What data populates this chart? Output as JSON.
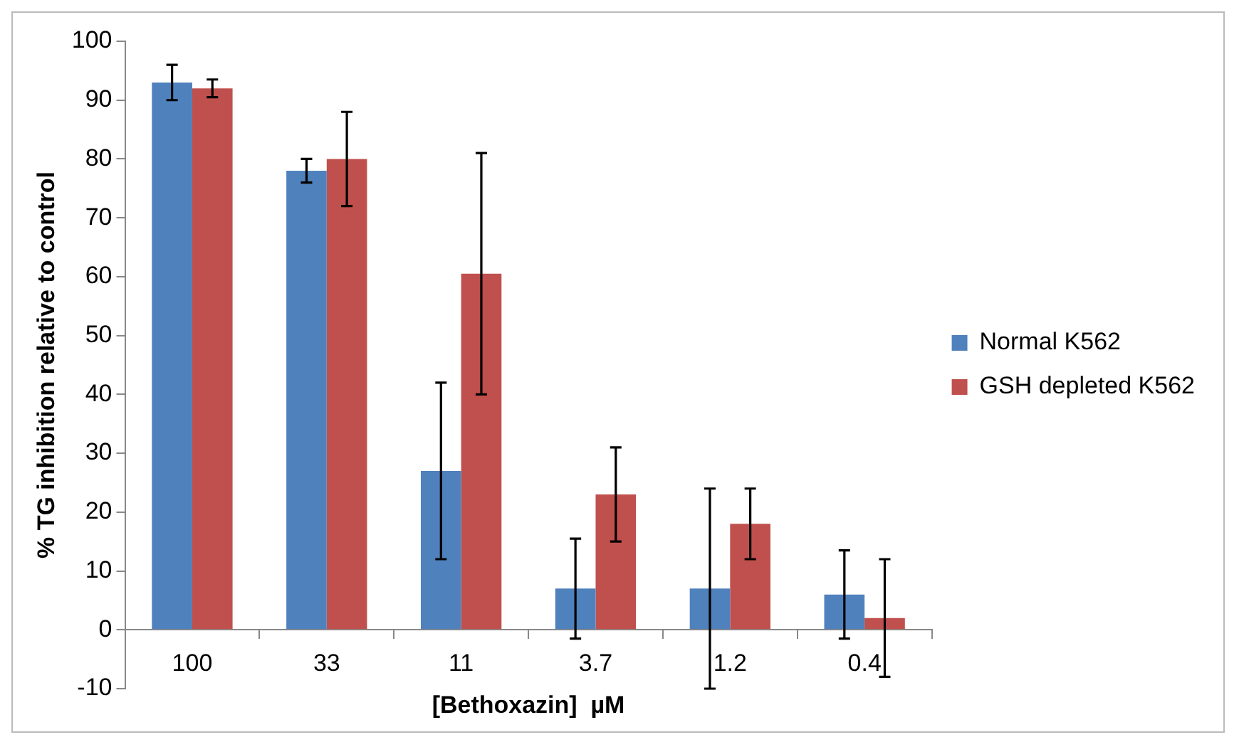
{
  "chart_data": {
    "type": "bar",
    "xlabel": "[Bethoxazin]  µM",
    "ylabel": "% TG inhibition relative to control",
    "categories": [
      "100",
      "33",
      "11",
      "3.7",
      "1.2",
      "0.4"
    ],
    "series": [
      {
        "name": "Normal K562",
        "color": "#4f81bd",
        "values": [
          93,
          78,
          27,
          7,
          7,
          6
        ],
        "errors": [
          3,
          2,
          15,
          8.5,
          17,
          7.5
        ]
      },
      {
        "name": "GSH depleted K562",
        "color": "#c0504d",
        "values": [
          92,
          80,
          60.5,
          23,
          18,
          2
        ],
        "errors": [
          1.5,
          8,
          20.5,
          8,
          6,
          10
        ]
      }
    ],
    "ylim": [
      -10,
      100
    ],
    "yticks": [
      -10,
      0,
      10,
      20,
      30,
      40,
      50,
      60,
      70,
      80,
      90,
      100
    ],
    "grid": false,
    "legend": "right"
  }
}
